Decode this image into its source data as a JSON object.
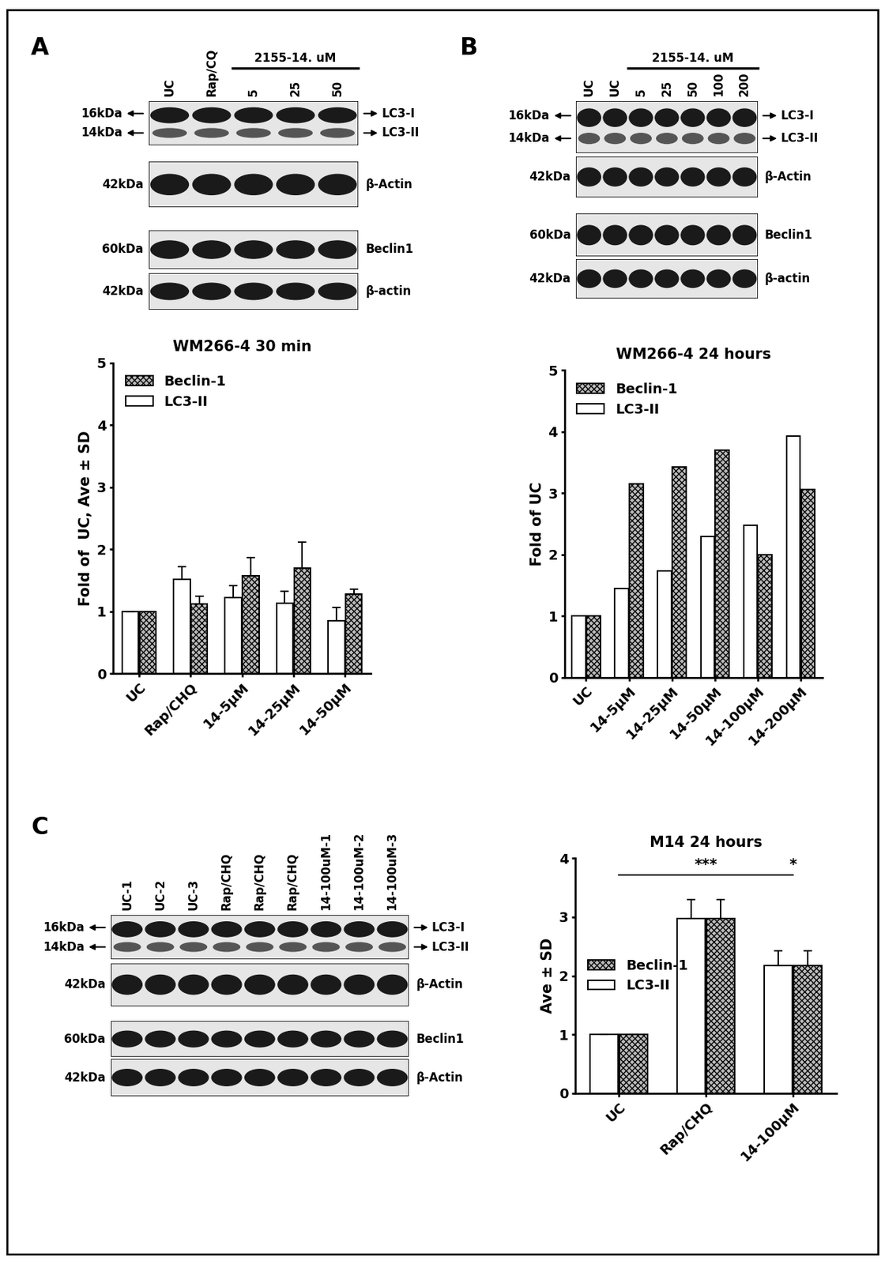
{
  "panels": [
    {
      "letter": "A",
      "blot": {
        "lanes": [
          "UC",
          "Rap/CQ"
        ],
        "header": {
          "text": "2155-14. uM",
          "lanes": [
            "5",
            "25",
            "50"
          ]
        },
        "strips": [
          {
            "left": [
              "16kDa",
              "14kDa"
            ],
            "right": [
              "LC3-I",
              "LC3-II"
            ]
          },
          {
            "left": [
              "42kDa"
            ],
            "right": [
              "β-Actin"
            ]
          },
          {
            "left": [
              "60kDa"
            ],
            "right": [
              "Beclin1"
            ]
          },
          {
            "left": [
              "42kDa"
            ],
            "right": [
              "β-actin"
            ]
          }
        ]
      }
    },
    {
      "letter": "B",
      "blot": {
        "lanes": [
          "UC",
          "UC"
        ],
        "header": {
          "text": "2155-14. uM",
          "lanes": [
            "5",
            "25",
            "50",
            "100",
            "200"
          ]
        },
        "strips": [
          {
            "left": [
              "16kDa",
              "14kDa"
            ],
            "right": [
              "LC3-I",
              "LC3-II"
            ]
          },
          {
            "left": [
              "42kDa"
            ],
            "right": [
              "β-Actin"
            ]
          },
          {
            "left": [
              "60kDa"
            ],
            "right": [
              "Beclin1"
            ]
          },
          {
            "left": [
              "42kDa"
            ],
            "right": [
              "β-actin"
            ]
          }
        ]
      }
    },
    {
      "letter": "C",
      "blot": {
        "lanes": [
          "UC-1",
          "UC-2",
          "UC-3",
          "Rap/CHQ",
          "Rap/CHQ",
          "Rap/CHQ",
          "14-100uM-1",
          "14-100uM-2",
          "14-100uM-3"
        ],
        "strips": [
          {
            "left": [
              "16kDa",
              "14kDa"
            ],
            "right": [
              "LC3-I",
              "LC3-II"
            ]
          },
          {
            "left": [
              "42kDa"
            ],
            "right": [
              "β-Actin"
            ]
          },
          {
            "left": [
              "60kDa"
            ],
            "right": [
              "Beclin1"
            ]
          },
          {
            "left": [
              "42kDa"
            ],
            "right": [
              "β-Actin"
            ]
          }
        ]
      }
    }
  ],
  "chart_data": [
    {
      "type": "bar",
      "title": "WM266-4 30 min",
      "y_label": "Fold of  UC, Ave ± SD",
      "categories": [
        "UC",
        "Rap/CHQ",
        "14-5μM",
        "14-25μM",
        "14-50μM"
      ],
      "series": [
        {
          "name": "LC3-II",
          "color": "#ffffff",
          "values": [
            1,
            1.52,
            1.22,
            1.13,
            0.85
          ],
          "errors": [
            0,
            0.2,
            0.2,
            0.2,
            0.22
          ]
        },
        {
          "name": "Beclin-1",
          "color": "#bbbbbb",
          "values": [
            1,
            1.12,
            1.57,
            1.7,
            1.28
          ],
          "errors": [
            0,
            0.13,
            0.3,
            0.42,
            0.08
          ]
        }
      ],
      "ylim": [
        0,
        5
      ],
      "yticks": [
        0,
        1,
        2,
        3,
        4,
        5
      ],
      "grid": false,
      "legend": "upper left"
    },
    {
      "type": "bar",
      "title": "WM266-4 24 hours",
      "y_label": "Fold of UC",
      "categories": [
        "UC",
        "14-5μM",
        "14-25μM",
        "14-50μM",
        "14-100μM",
        "14-200μM"
      ],
      "series": [
        {
          "name": "LC3-II",
          "color": "#ffffff",
          "values": [
            1,
            1.45,
            1.73,
            2.3,
            2.48,
            3.93
          ]
        },
        {
          "name": "Beclin-1",
          "color": "#bbbbbb",
          "values": [
            1,
            3.15,
            3.43,
            3.7,
            2.0,
            3.06
          ]
        }
      ],
      "ylim": [
        0,
        5
      ],
      "yticks": [
        0,
        1,
        2,
        3,
        4,
        5
      ],
      "grid": false,
      "legend": "upper left"
    },
    {
      "type": "bar",
      "title": "M14 24 hours",
      "y_label": "Ave ± SD",
      "categories": [
        "UC",
        "Rap/CHQ",
        "14-100μM"
      ],
      "series": [
        {
          "name": "LC3-II",
          "color": "#ffffff",
          "values": [
            1,
            2.97,
            2.17
          ],
          "errors": [
            0,
            0.33,
            0.26
          ]
        },
        {
          "name": "Beclin-1",
          "color": "#bbbbbb",
          "values": [
            1,
            2.97,
            2.17
          ],
          "errors": [
            0,
            0.33,
            0.26
          ]
        }
      ],
      "annotations": [
        {
          "text": "***",
          "category": "Rap/CHQ"
        },
        {
          "text": "*",
          "category": "14-100μM"
        }
      ],
      "ylim": [
        0,
        4
      ],
      "yticks": [
        0,
        1,
        2,
        3,
        4
      ],
      "grid": false,
      "legend": "center left"
    }
  ]
}
